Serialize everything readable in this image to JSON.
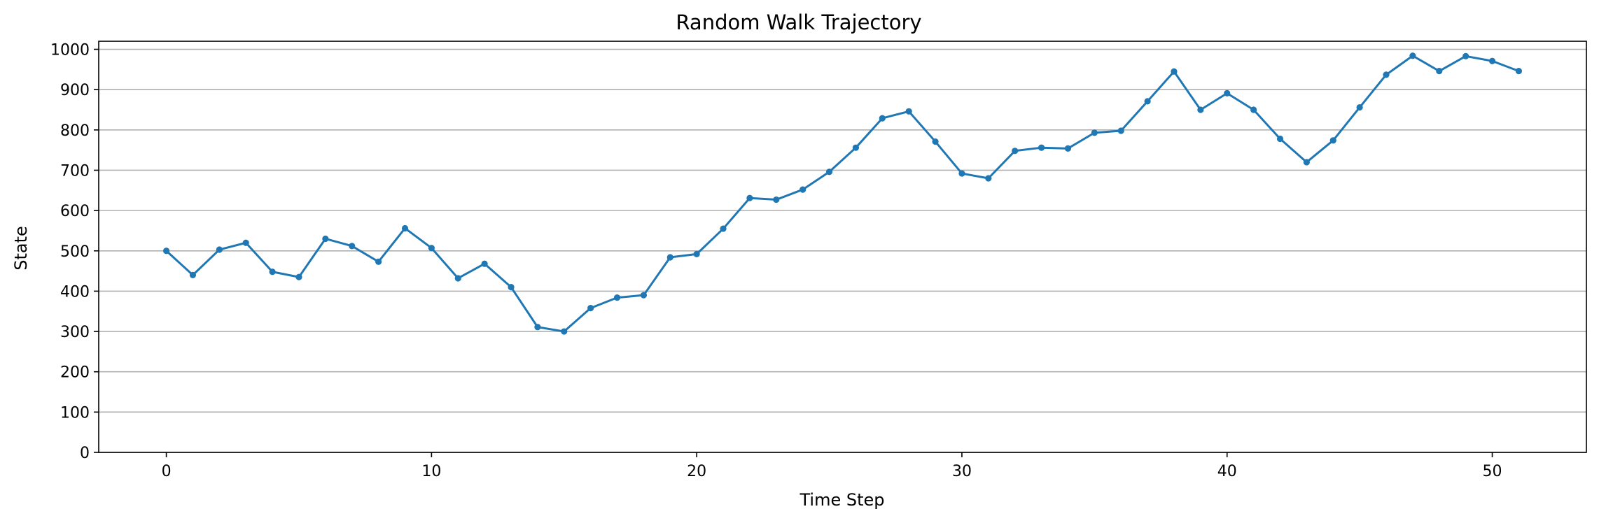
{
  "chart_data": {
    "type": "line",
    "title": "Random Walk Trajectory",
    "xlabel": "Time Step",
    "ylabel": "State",
    "xlim": [
      -2.55,
      53.55
    ],
    "ylim": [
      0,
      1020
    ],
    "xticks": [
      0,
      10,
      20,
      30,
      40,
      50
    ],
    "yticks": [
      0,
      100,
      200,
      300,
      400,
      500,
      600,
      700,
      800,
      900,
      1000
    ],
    "grid": "horizontal",
    "colors": {
      "line": "#1f77b4",
      "grid": "#b0b0b0",
      "axis": "#000000"
    },
    "series": [
      {
        "marker": "circle",
        "x": [
          0,
          1,
          2,
          3,
          4,
          5,
          6,
          7,
          8,
          9,
          10,
          11,
          12,
          13,
          14,
          15,
          16,
          17,
          18,
          19,
          20,
          21,
          22,
          23,
          24,
          25,
          26,
          27,
          28,
          29,
          30,
          31,
          32,
          33,
          34,
          35,
          36,
          37,
          38,
          39,
          40,
          41,
          42,
          43,
          44,
          45,
          46,
          47,
          48,
          49,
          50,
          51
        ],
        "y": [
          500,
          440,
          503,
          520,
          448,
          435,
          530,
          512,
          473,
          556,
          507,
          432,
          468,
          410,
          311,
          300,
          358,
          384,
          390,
          484,
          492,
          555,
          631,
          627,
          652,
          696,
          756,
          829,
          846,
          771,
          692,
          680,
          748,
          756,
          754,
          793,
          798,
          871,
          945,
          850,
          891,
          850,
          778,
          720,
          774,
          856,
          937,
          984,
          946,
          983,
          971,
          946
        ]
      }
    ]
  }
}
